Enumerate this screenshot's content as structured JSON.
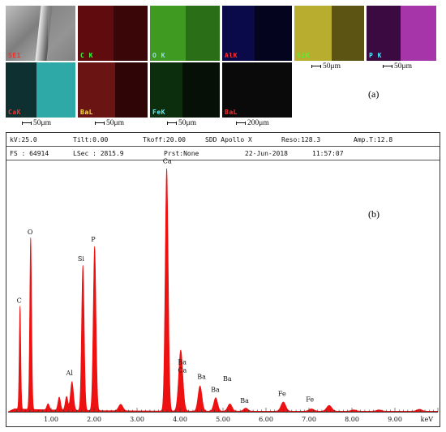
{
  "maps": [
    {
      "label": "SE1",
      "label_color": "#ff2a2a",
      "bg": "#9a9a9a",
      "kind": "sem"
    },
    {
      "label": "C K",
      "label_color": "#39ff39",
      "bg": "#3a0608",
      "kind": "red"
    },
    {
      "label": "O K",
      "label_color": "#9ad8ff",
      "bg": "#1f5a12",
      "kind": "green"
    },
    {
      "label": "AlK",
      "label_color": "#ff3030",
      "bg": "#04041e",
      "kind": "blue"
    },
    {
      "label": "SiK",
      "label_color": "#39ff39",
      "bg": "#5b5412",
      "kind": "yellow"
    },
    {
      "label": "P K",
      "label_color": "#4de8ff",
      "bg": "#3a0a40",
      "kind": "magenta"
    },
    {
      "label": "CaK",
      "label_color": "#ff3030",
      "bg": "#0e3030",
      "kind": "cyan"
    },
    {
      "label": "BaL",
      "label_color": "#ffe640",
      "bg": "#300506",
      "kind": "darkred"
    },
    {
      "label": "FeK",
      "label_color": "#5cf0ff",
      "bg": "#061006",
      "kind": "darkgreen"
    },
    {
      "label": "BaL",
      "label_color": "#ff3030",
      "bg": "#0a0a0a",
      "kind": "black"
    }
  ],
  "scalebars": [
    "50μm",
    "50μm",
    "50μm",
    "50μm",
    "50μm",
    "200μm"
  ],
  "panel_labels": {
    "a": "(a)",
    "b": "(b)"
  },
  "header": {
    "kv": "kV:25.0",
    "tilt": "Tilt:0.00",
    "tkoff": "Tkoff:20.00",
    "detector": "SDD Apollo X",
    "reso": "Reso:128.3",
    "ampt": "Amp.T:12.8",
    "fs": "FS : 64914",
    "lsec": "LSec : 2815.9",
    "prst": "Prst:None",
    "date": "22-Jun-2018",
    "time": "11:57:07"
  },
  "chart_data": {
    "type": "area",
    "x_unit": "keV",
    "xlim": [
      0,
      10
    ],
    "ylim": [
      0,
      64914
    ],
    "xticks": [
      "1.00",
      "2.00",
      "3.00",
      "4.00",
      "5.00",
      "6.00",
      "7.00",
      "8.00",
      "9.00"
    ],
    "xtick_values": [
      1,
      2,
      3,
      4,
      5,
      6,
      7,
      8,
      9
    ],
    "fill_color": "#ee1111",
    "peaks": [
      {
        "element": "C",
        "energy": 0.277,
        "counts": 27000,
        "width": 0.018
      },
      {
        "element": "O",
        "energy": 0.525,
        "counts": 45000,
        "width": 0.022
      },
      {
        "element": "Al",
        "energy": 1.486,
        "counts": 7500,
        "width": 0.035
      },
      {
        "element": "Si",
        "energy": 1.74,
        "counts": 38000,
        "width": 0.03
      },
      {
        "element": "P",
        "energy": 2.013,
        "counts": 43000,
        "width": 0.032
      },
      {
        "element": "Ca",
        "energy": 3.69,
        "counts": 63500,
        "width": 0.035
      },
      {
        "element": "Ba",
        "energy": 4.02,
        "counts": 9000,
        "width": 0.05
      },
      {
        "element": "Ca",
        "energy": 4.013,
        "counts": 7000,
        "width": 0.045
      },
      {
        "element": "Ba",
        "energy": 4.465,
        "counts": 6600,
        "width": 0.045
      },
      {
        "element": "Ba",
        "energy": 4.83,
        "counts": 3500,
        "width": 0.045
      },
      {
        "element": "Ba",
        "energy": 5.16,
        "counts": 1900,
        "width": 0.05
      },
      {
        "element": "Ba",
        "energy": 5.53,
        "counts": 800,
        "width": 0.05
      },
      {
        "element": "Fe",
        "energy": 6.404,
        "counts": 2400,
        "width": 0.055
      },
      {
        "element": "Fe",
        "energy": 7.058,
        "counts": 600,
        "width": 0.06
      }
    ],
    "minor_peaks": [
      {
        "energy": 0.93,
        "counts": 1600,
        "width": 0.03
      },
      {
        "energy": 1.19,
        "counts": 3400,
        "width": 0.03
      },
      {
        "energy": 1.36,
        "counts": 3600,
        "width": 0.03
      },
      {
        "energy": 2.62,
        "counts": 1700,
        "width": 0.05
      },
      {
        "energy": 7.47,
        "counts": 1500,
        "width": 0.06
      },
      {
        "energy": 8.04,
        "counts": 350,
        "width": 0.06
      },
      {
        "energy": 8.63,
        "counts": 350,
        "width": 0.06
      },
      {
        "energy": 9.57,
        "counts": 500,
        "width": 0.06
      }
    ],
    "peak_labels": [
      {
        "text": "C",
        "energy": 0.2,
        "counts": 28500
      },
      {
        "text": "O",
        "energy": 0.45,
        "counts": 46500
      },
      {
        "text": "Si",
        "energy": 1.62,
        "counts": 39500
      },
      {
        "text": "P",
        "energy": 1.93,
        "counts": 44600
      },
      {
        "text": "Al",
        "energy": 1.35,
        "counts": 9500
      },
      {
        "text": "Ca",
        "energy": 3.6,
        "counts": 65000
      },
      {
        "text": "Ba",
        "energy": 3.95,
        "counts": 12400
      },
      {
        "text": "Ca",
        "energy": 3.95,
        "counts": 10300
      },
      {
        "text": "Ba",
        "energy": 4.4,
        "counts": 8600
      },
      {
        "text": "Ba",
        "energy": 5.0,
        "counts": 8100
      },
      {
        "text": "Ba",
        "energy": 4.72,
        "counts": 5200
      },
      {
        "text": "Ba",
        "energy": 5.4,
        "counts": 2300
      },
      {
        "text": "Fe",
        "energy": 6.28,
        "counts": 4100
      },
      {
        "text": "Fe",
        "energy": 6.93,
        "counts": 2600
      }
    ]
  }
}
